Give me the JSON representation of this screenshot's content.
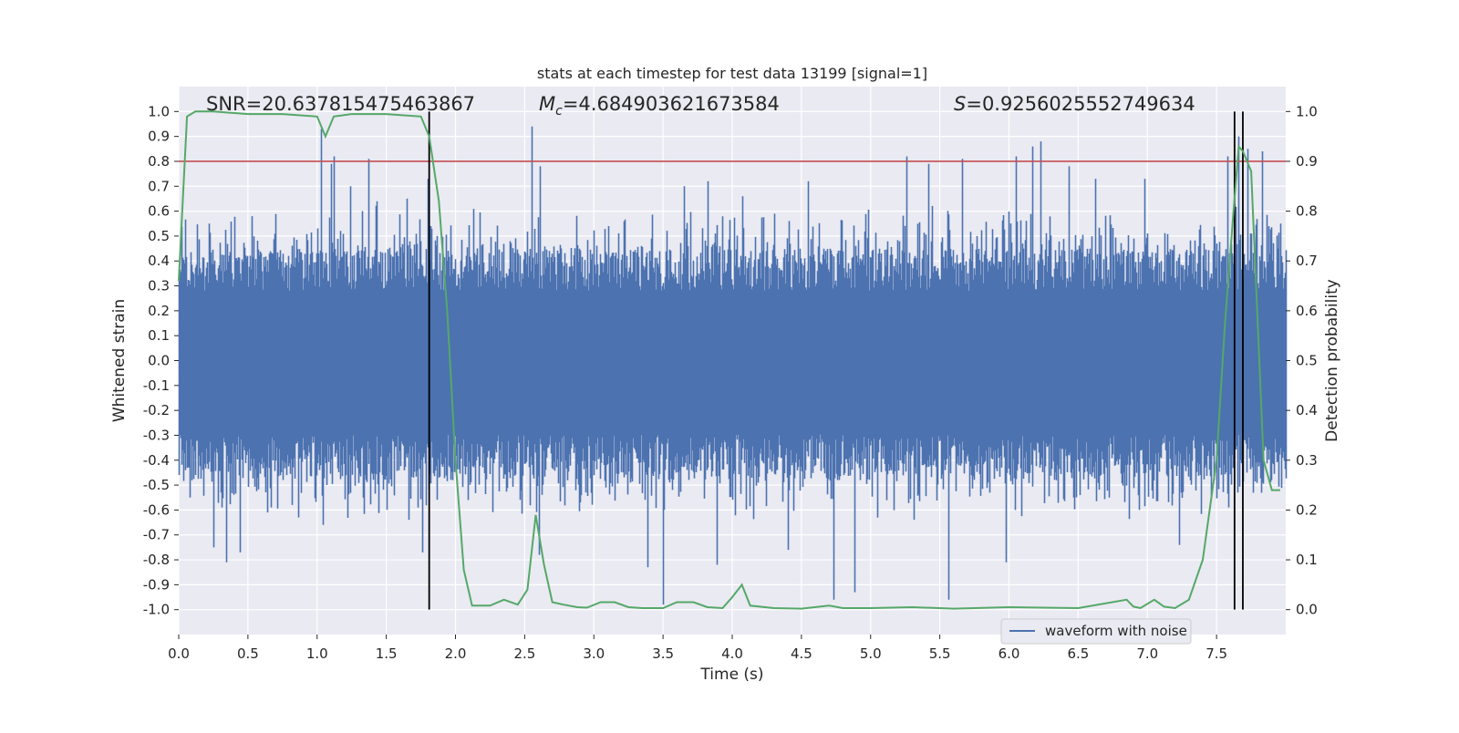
{
  "chart_data": {
    "type": "line",
    "title": "stats at each timestep for test data 13199 [signal=1]",
    "xlabel": "Time (s)",
    "ylabel_left": "Whitened strain",
    "ylabel_right": "Detection probability",
    "xlim": [
      0,
      8.0
    ],
    "ylim_left": [
      -1.1,
      1.1
    ],
    "ylim_right": [
      -0.05,
      1.05
    ],
    "x_ticks": [
      "0.0",
      "0.5",
      "1.0",
      "1.5",
      "2.0",
      "2.5",
      "3.0",
      "3.5",
      "4.0",
      "4.5",
      "5.0",
      "5.5",
      "6.0",
      "6.5",
      "7.0",
      "7.5"
    ],
    "y_left_ticks": [
      "1.0",
      "0.9",
      "0.8",
      "0.7",
      "0.6",
      "0.5",
      "0.4",
      "0.3",
      "0.2",
      "0.1",
      "0.0",
      "-0.1",
      "-0.2",
      "-0.3",
      "-0.4",
      "-0.5",
      "-0.6",
      "-0.7",
      "-0.8",
      "-0.9",
      "-1.0"
    ],
    "y_right_ticks": [
      "1.0",
      "0.9",
      "0.8",
      "0.7",
      "0.6",
      "0.5",
      "0.4",
      "0.3",
      "0.2",
      "0.1",
      "0.0"
    ],
    "annotations": {
      "snr": "SNR=20.637815475463867",
      "mc": "=4.684903621673584",
      "mc_symbol": "M",
      "mc_sub": "c",
      "s": "=0.9256025552749634",
      "s_symbol": "S"
    },
    "threshold": {
      "value": 0.9,
      "axis": "right",
      "color": "#c44e52"
    },
    "vertical_lines": [
      1.81,
      7.63,
      7.69
    ],
    "grid": true,
    "legend": {
      "position": "lower-right",
      "entries": [
        "waveform with noise"
      ]
    },
    "colors": {
      "waveform": "#4c72b0",
      "probability": "#55a868",
      "threshold": "#c44e52",
      "vlines": "#000000",
      "background": "#eaeaf2"
    },
    "series": [
      {
        "name": "waveform with noise",
        "axis": "left",
        "x_range": [
          0,
          8.0
        ],
        "approx_amplitude_upper": 0.45,
        "approx_amplitude_lower": -0.48,
        "peaks": [
          {
            "x": 0.22,
            "y": 0.55
          },
          {
            "x": 0.25,
            "y": -0.75
          },
          {
            "x": 0.34,
            "y": -0.81
          },
          {
            "x": 0.44,
            "y": -0.77
          },
          {
            "x": 0.53,
            "y": 0.58
          },
          {
            "x": 0.64,
            "y": -0.61
          },
          {
            "x": 0.86,
            "y": -0.63
          },
          {
            "x": 1.03,
            "y": 0.93
          },
          {
            "x": 1.04,
            "y": -0.66
          },
          {
            "x": 1.1,
            "y": 0.79
          },
          {
            "x": 1.12,
            "y": 0.82
          },
          {
            "x": 1.24,
            "y": 0.7
          },
          {
            "x": 1.37,
            "y": 0.81
          },
          {
            "x": 1.43,
            "y": 0.64
          },
          {
            "x": 1.65,
            "y": 0.65
          },
          {
            "x": 1.76,
            "y": -0.77
          },
          {
            "x": 1.8,
            "y": 0.73
          },
          {
            "x": 2.55,
            "y": 0.94
          },
          {
            "x": 2.61,
            "y": 0.78
          },
          {
            "x": 2.6,
            "y": -0.78
          },
          {
            "x": 3.39,
            "y": -0.83
          },
          {
            "x": 3.5,
            "y": -0.98
          },
          {
            "x": 3.65,
            "y": 0.7
          },
          {
            "x": 3.82,
            "y": 0.72
          },
          {
            "x": 3.89,
            "y": -0.82
          },
          {
            "x": 4.07,
            "y": 0.66
          },
          {
            "x": 4.4,
            "y": -0.76
          },
          {
            "x": 4.55,
            "y": 0.72
          },
          {
            "x": 4.73,
            "y": -0.96
          },
          {
            "x": 4.88,
            "y": -0.93
          },
          {
            "x": 5.26,
            "y": 0.82
          },
          {
            "x": 5.42,
            "y": 0.79
          },
          {
            "x": 5.56,
            "y": -0.96
          },
          {
            "x": 5.66,
            "y": 0.81
          },
          {
            "x": 5.98,
            "y": -0.81
          },
          {
            "x": 6.05,
            "y": 0.82
          },
          {
            "x": 6.17,
            "y": 0.86
          },
          {
            "x": 6.23,
            "y": 0.88
          },
          {
            "x": 6.43,
            "y": 0.78
          },
          {
            "x": 6.62,
            "y": 0.73
          },
          {
            "x": 6.98,
            "y": 0.73
          },
          {
            "x": 7.23,
            "y": -0.74
          },
          {
            "x": 7.58,
            "y": 0.82
          },
          {
            "x": 7.66,
            "y": 0.9
          },
          {
            "x": 7.72,
            "y": 0.85
          },
          {
            "x": 7.83,
            "y": 0.84
          },
          {
            "x": 7.96,
            "y": 0.55
          }
        ]
      },
      {
        "name": "detection probability",
        "axis": "right",
        "x": [
          0.0,
          0.06,
          0.12,
          0.25,
          0.5,
          0.75,
          1.0,
          1.06,
          1.12,
          1.25,
          1.5,
          1.75,
          1.81,
          1.88,
          1.94,
          2.0,
          2.06,
          2.12,
          2.25,
          2.35,
          2.45,
          2.52,
          2.58,
          2.64,
          2.7,
          2.78,
          2.88,
          2.95,
          3.05,
          3.15,
          3.25,
          3.35,
          3.5,
          3.6,
          3.72,
          3.82,
          3.93,
          4.0,
          4.07,
          4.13,
          4.3,
          4.5,
          4.7,
          4.8,
          5.0,
          5.3,
          5.6,
          6.0,
          6.5,
          6.85,
          6.9,
          6.95,
          7.05,
          7.12,
          7.2,
          7.3,
          7.4,
          7.5,
          7.56,
          7.62,
          7.66,
          7.69,
          7.75,
          7.84,
          7.9,
          7.96
        ],
        "values": [
          0.66,
          0.99,
          1.0,
          1.0,
          0.995,
          0.995,
          0.99,
          0.95,
          0.99,
          0.995,
          0.995,
          0.99,
          0.95,
          0.82,
          0.6,
          0.3,
          0.08,
          0.008,
          0.008,
          0.02,
          0.01,
          0.04,
          0.19,
          0.09,
          0.015,
          0.01,
          0.005,
          0.004,
          0.015,
          0.015,
          0.005,
          0.003,
          0.003,
          0.015,
          0.015,
          0.005,
          0.003,
          0.025,
          0.05,
          0.008,
          0.003,
          0.002,
          0.008,
          0.003,
          0.003,
          0.005,
          0.002,
          0.005,
          0.003,
          0.02,
          0.006,
          0.003,
          0.02,
          0.006,
          0.003,
          0.02,
          0.1,
          0.3,
          0.57,
          0.79,
          0.93,
          0.92,
          0.88,
          0.3,
          0.24,
          0.24
        ]
      }
    ]
  }
}
